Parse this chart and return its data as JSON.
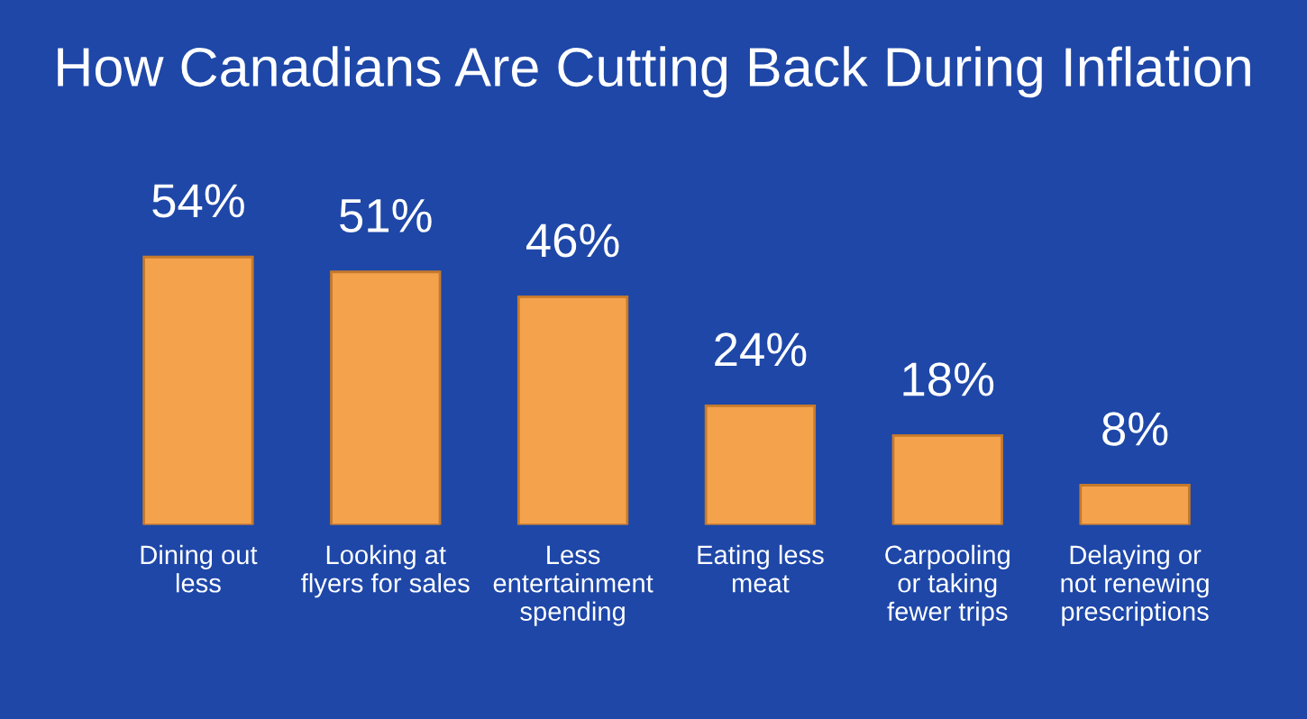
{
  "chart_data": {
    "type": "bar",
    "title": "How Canadians Are Cutting Back During Inflation",
    "categories": [
      "Dining out\nless",
      "Looking at\nflyers for sales",
      "Less\nentertainment\nspending",
      "Eating less\nmeat",
      "Carpooling\nor taking\nfewer trips",
      "Delaying or\nnot renewing\nprescriptions"
    ],
    "values": [
      54,
      51,
      46,
      24,
      18,
      8
    ],
    "value_labels": [
      "54%",
      "51%",
      "46%",
      "24%",
      "18%",
      "8%"
    ],
    "color": "#f5a24c",
    "grid": false,
    "legend": false
  }
}
